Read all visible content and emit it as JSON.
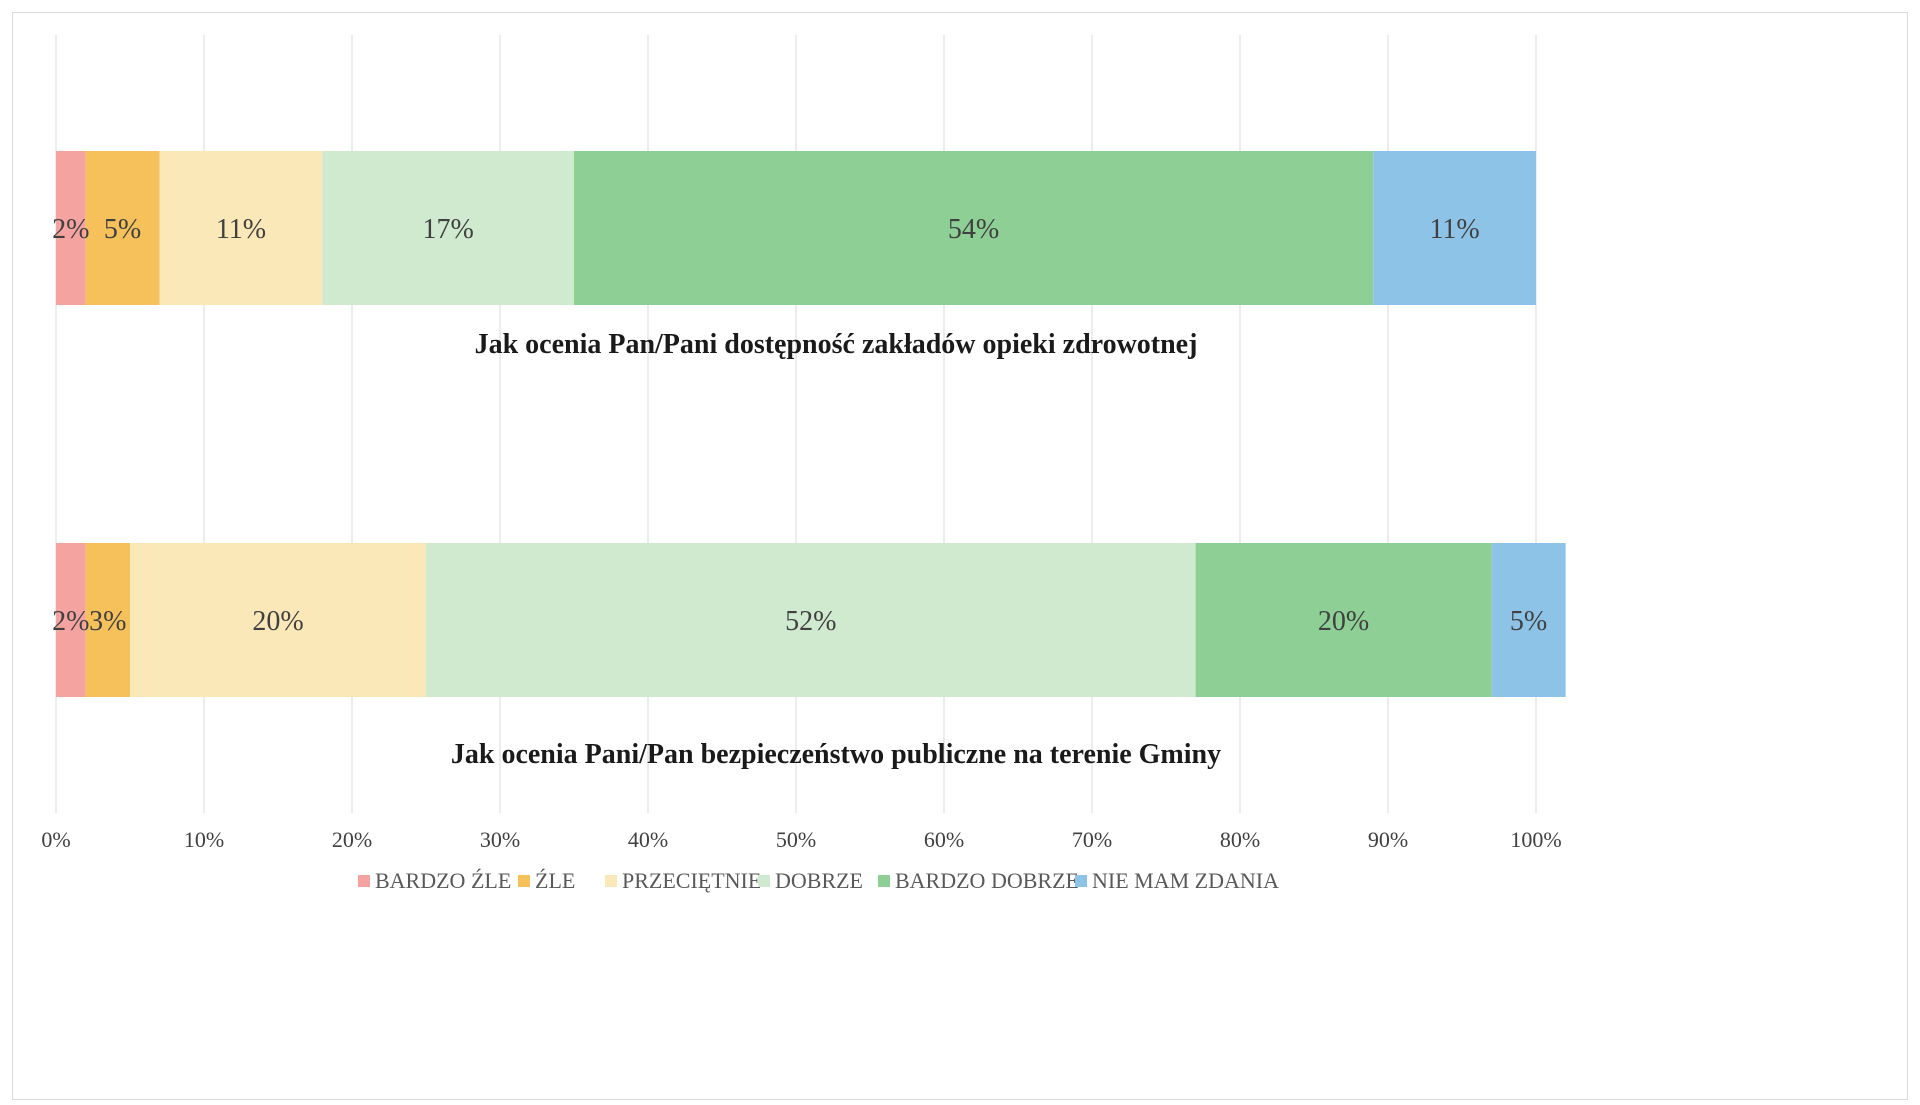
{
  "chart_data": {
    "type": "bar",
    "orientation": "horizontal",
    "stacked": true,
    "percent_stacked": true,
    "xlim": [
      0,
      100
    ],
    "grid": true,
    "legend_position": "bottom",
    "x_ticks": [
      "0%",
      "10%",
      "20%",
      "30%",
      "40%",
      "50%",
      "60%",
      "70%",
      "80%",
      "90%",
      "100%"
    ],
    "categories": [
      "Jak ocenia Pan/Pani dostępność zakładów opieki zdrowotnej",
      "Jak ocenia Pani/Pan bezpieczeństwo publiczne na terenie Gminy"
    ],
    "series": [
      {
        "name": "BARDZO ŹLE",
        "color": "#f4a3a0",
        "values": [
          2,
          2
        ]
      },
      {
        "name": "ŹLE",
        "color": "#f6c15a",
        "values": [
          5,
          3
        ]
      },
      {
        "name": "PRZECIĘTNIE",
        "color": "#fae8b8",
        "values": [
          11,
          20
        ]
      },
      {
        "name": "DOBRZE",
        "color": "#cfeacf",
        "values": [
          17,
          52
        ]
      },
      {
        "name": "BARDZO DOBRZE",
        "color": "#8dcf94",
        "values": [
          54,
          20
        ]
      },
      {
        "name": "NIE MAM ZDANIA",
        "color": "#8ec3e8",
        "values": [
          11,
          5
        ]
      }
    ],
    "data_labels": [
      [
        "2%",
        "5%",
        "11%",
        "17%",
        "54%",
        "11%"
      ],
      [
        "2%",
        "3%",
        "20%",
        "52%",
        "20%",
        "5%"
      ]
    ]
  }
}
